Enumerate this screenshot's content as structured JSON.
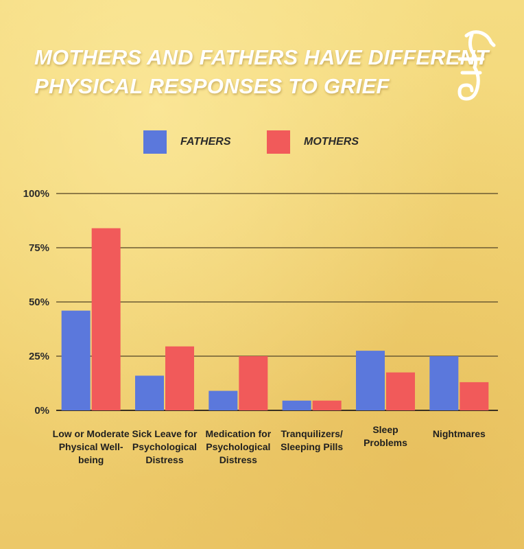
{
  "title": {
    "line1": "MOTHERS AND FATHERS HAVE DIFFERENT",
    "line2": "PHYSICAL RESPONSES TO GRIEF"
  },
  "logo": {
    "icon": "seahorse-logo-icon",
    "color": "#ffffff"
  },
  "colors": {
    "fathers": "#5b78dc",
    "mothers": "#f15a5a",
    "gridline": "#6b5a33",
    "axis_text": "#2b2b2b"
  },
  "chart_data": {
    "type": "bar",
    "title": "MOTHERS AND FATHERS HAVE DIFFERENT PHYSICAL RESPONSES TO GRIEF",
    "xlabel": "",
    "ylabel": "",
    "ylim": [
      0,
      100
    ],
    "yticks": [
      0,
      25,
      50,
      75,
      100
    ],
    "ytick_labels": [
      "0%",
      "25%",
      "50%",
      "75%",
      "100%"
    ],
    "grid": true,
    "legend_position": "top",
    "categories": [
      [
        "Low or Moderate",
        "Physical Well-",
        "being"
      ],
      [
        "Sick Leave for",
        "Psychological",
        "Distress"
      ],
      [
        "Medication for",
        "Psychological",
        "Distress"
      ],
      [
        "Tranquilizers/",
        "Sleeping Pills"
      ],
      [
        "Sleep",
        "Problems"
      ],
      [
        "Nightmares"
      ]
    ],
    "series": [
      {
        "name": "FATHERS",
        "values": [
          46,
          16,
          9,
          4.5,
          27.5,
          25
        ]
      },
      {
        "name": "MOTHERS",
        "values": [
          84,
          29.5,
          25,
          4.5,
          17.5,
          13
        ]
      }
    ]
  }
}
